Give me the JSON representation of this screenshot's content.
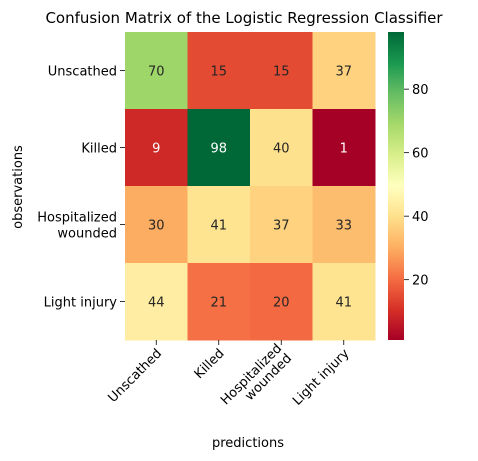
{
  "chart_data": {
    "type": "heatmap",
    "title": "Confusion Matrix of the Logistic Regression Classifier",
    "xlabel": "predictions",
    "ylabel": "observations",
    "x_categories": [
      "Unscathed",
      "Killed",
      "Hospitalized\nwounded",
      "Light injury"
    ],
    "y_categories": [
      "Unscathed",
      "Killed",
      "Hospitalized\nwounded",
      "Light injury"
    ],
    "values": [
      [
        70,
        15,
        15,
        37
      ],
      [
        9,
        98,
        40,
        1
      ],
      [
        30,
        41,
        37,
        33
      ],
      [
        44,
        21,
        20,
        41
      ]
    ],
    "colormap": "RdYlGn",
    "color_range": [
      1,
      98
    ],
    "colorbar_ticks": [
      20,
      40,
      60,
      80
    ],
    "annotations": true
  }
}
